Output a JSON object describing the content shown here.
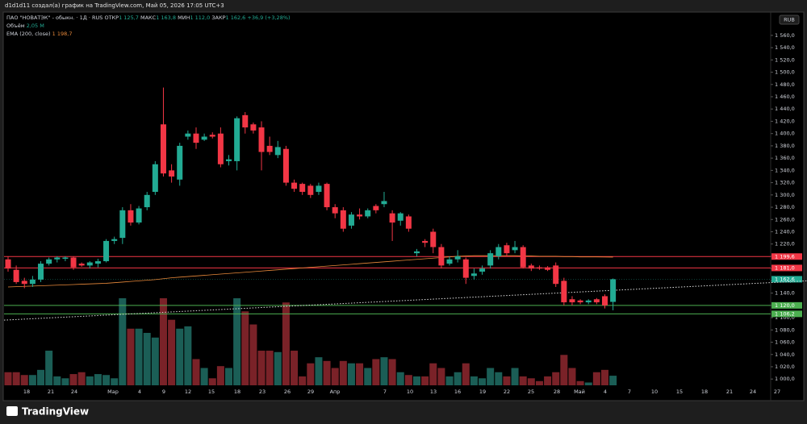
{
  "header": {
    "author": "d1d1d11 создал(а) график на TradingView.com, Май 05, 2026 17:05 UTC+3"
  },
  "legend": {
    "symbol": "ПАО \"НОВАТЭК\" - обыкн. · 1Д · RUS",
    "open_label": "ОТКР",
    "open": "1 125,7",
    "high_label": "МАКС",
    "high": "1 163,8",
    "low_label": "МИН",
    "low": "1 112,0",
    "close_label": "ЗАКР",
    "close": "1 162,6",
    "change": "+36,9 (+3,28%)",
    "volume_label": "Объём",
    "volume": "2,05 M",
    "ema_label": "EMA (200, close)",
    "ema": "1 198,7"
  },
  "currency": "RUB",
  "logo": "TradingView",
  "chart_data": {
    "type": "candlestick",
    "up_color": "#22ab94",
    "down_color": "#f23645",
    "up_volume_color": "#1b5e56",
    "down_volume_color": "#7a2228",
    "ema_color": "#e8893a",
    "ylim": [
      974,
      1594
    ],
    "yticks": [
      {
        "value": 1000,
        "label": "1 000,0"
      },
      {
        "value": 1020,
        "label": "1 020,0"
      },
      {
        "value": 1040,
        "label": "1 040,0"
      },
      {
        "value": 1060,
        "label": "1 060,0"
      },
      {
        "value": 1080,
        "label": "1 080,0"
      },
      {
        "value": 1100,
        "label": "1 100,0"
      },
      {
        "value": 1120,
        "label": "1 120,0"
      },
      {
        "value": 1140,
        "label": "1 140,0"
      },
      {
        "value": 1160,
        "label": "1 160,0"
      },
      {
        "value": 1180,
        "label": "1 180,0"
      },
      {
        "value": 1200,
        "label": "1 200,0"
      },
      {
        "value": 1220,
        "label": "1 220,0"
      },
      {
        "value": 1240,
        "label": "1 240,0"
      },
      {
        "value": 1260,
        "label": "1 260,0"
      },
      {
        "value": 1280,
        "label": "1 280,0"
      },
      {
        "value": 1300,
        "label": "1 300,0"
      },
      {
        "value": 1320,
        "label": "1 320,0"
      },
      {
        "value": 1340,
        "label": "1 340,0"
      },
      {
        "value": 1360,
        "label": "1 360,0"
      },
      {
        "value": 1380,
        "label": "1 380,0"
      },
      {
        "value": 1400,
        "label": "1 400,0"
      },
      {
        "value": 1420,
        "label": "1 420,0"
      },
      {
        "value": 1440,
        "label": "1 440,0"
      },
      {
        "value": 1460,
        "label": "1 460,0"
      },
      {
        "value": 1480,
        "label": "1 480,0"
      },
      {
        "value": 1500,
        "label": "1 500,0"
      },
      {
        "value": 1520,
        "label": "1 520,0"
      },
      {
        "value": 1540,
        "label": "1 540,0"
      },
      {
        "value": 1560,
        "label": "1 560,0"
      }
    ],
    "x_labels": [
      "18",
      "21",
      "24",
      "Мар",
      "4",
      "9",
      "12",
      "15",
      "18",
      "23",
      "26",
      "29",
      "Апр",
      "7",
      "10",
      "13",
      "16",
      "19",
      "22",
      "25",
      "28",
      "Май",
      "4",
      "7",
      "10",
      "15",
      "18",
      "21",
      "24",
      "27"
    ],
    "open": [
      1195,
      1178,
      1160,
      1155,
      1162,
      1188,
      1195,
      1196,
      1198,
      1188,
      1185,
      1188,
      1192,
      1225,
      1230,
      1275,
      1255,
      1280,
      1305,
      1415,
      1340,
      1325,
      1395,
      1400,
      1390,
      1398,
      1400,
      1355,
      1355,
      1430,
      1415,
      1410,
      1380,
      1365,
      1375,
      1320,
      1318,
      1315,
      1305,
      1318,
      1280,
      1275,
      1250,
      1268,
      1265,
      1282,
      1285,
      1270,
      1258,
      1265,
      1205,
      1225,
      1240,
      1215,
      1188,
      1195,
      1195,
      1168,
      1175,
      1185,
      1200,
      1218,
      1210,
      1215,
      1185,
      1182,
      1182,
      1185,
      1160,
      1130,
      1128,
      1125,
      1130,
      1135,
      1125.7
    ],
    "high": [
      1200,
      1185,
      1165,
      1168,
      1192,
      1198,
      1200,
      1200,
      1200,
      1190,
      1192,
      1196,
      1228,
      1232,
      1280,
      1285,
      1282,
      1305,
      1355,
      1475,
      1350,
      1385,
      1405,
      1410,
      1400,
      1402,
      1410,
      1365,
      1428,
      1435,
      1418,
      1420,
      1395,
      1388,
      1380,
      1325,
      1320,
      1318,
      1320,
      1320,
      1285,
      1280,
      1272,
      1278,
      1278,
      1285,
      1305,
      1275,
      1272,
      1268,
      1212,
      1228,
      1245,
      1220,
      1200,
      1210,
      1198,
      1180,
      1185,
      1210,
      1220,
      1222,
      1225,
      1218,
      1188,
      1185,
      1184,
      1190,
      1165,
      1135,
      1130,
      1130,
      1132,
      1138,
      1163.8
    ],
    "low": [
      1175,
      1155,
      1148,
      1150,
      1158,
      1185,
      1190,
      1192,
      1178,
      1183,
      1180,
      1182,
      1190,
      1220,
      1220,
      1250,
      1252,
      1275,
      1300,
      1330,
      1320,
      1315,
      1390,
      1375,
      1388,
      1392,
      1345,
      1348,
      1340,
      1400,
      1400,
      1340,
      1365,
      1360,
      1315,
      1305,
      1300,
      1295,
      1300,
      1275,
      1262,
      1240,
      1245,
      1260,
      1262,
      1270,
      1280,
      1225,
      1250,
      1240,
      1200,
      1215,
      1205,
      1180,
      1185,
      1190,
      1155,
      1162,
      1170,
      1180,
      1195,
      1200,
      1205,
      1180,
      1176,
      1178,
      1176,
      1150,
      1120,
      1120,
      1122,
      1122,
      1122,
      1115,
      1112
    ],
    "close": [
      1180,
      1158,
      1155,
      1162,
      1188,
      1195,
      1198,
      1198,
      1182,
      1185,
      1190,
      1192,
      1225,
      1228,
      1275,
      1255,
      1278,
      1300,
      1350,
      1335,
      1330,
      1380,
      1400,
      1385,
      1395,
      1395,
      1350,
      1358,
      1425,
      1410,
      1405,
      1370,
      1370,
      1378,
      1320,
      1310,
      1305,
      1300,
      1315,
      1280,
      1270,
      1245,
      1268,
      1265,
      1275,
      1275,
      1290,
      1255,
      1270,
      1245,
      1208,
      1222,
      1215,
      1185,
      1195,
      1200,
      1165,
      1172,
      1180,
      1205,
      1215,
      1205,
      1215,
      1182,
      1180,
      1180,
      1178,
      1155,
      1125,
      1125,
      1125,
      1128,
      1125,
      1120,
      1162.6
    ],
    "volume": [
      2.8,
      2.8,
      2.2,
      2.2,
      3.3,
      7.4,
      1.9,
      1.5,
      2.4,
      2.8,
      1.9,
      2.4,
      2.2,
      1.5,
      18.6,
      12.1,
      12.1,
      11.2,
      10.2,
      18.6,
      14.0,
      12.1,
      12.6,
      5.6,
      3.7,
      1.5,
      4.1,
      3.7,
      18.6,
      15.8,
      13.0,
      7.4,
      7.4,
      7.1,
      17.7,
      7.4,
      1.9,
      4.7,
      6.0,
      5.2,
      3.7,
      5.2,
      4.7,
      4.7,
      3.7,
      5.6,
      6.0,
      5.6,
      2.8,
      2.2,
      1.9,
      1.9,
      4.7,
      3.7,
      1.9,
      2.8,
      4.7,
      1.9,
      1.5,
      3.7,
      2.8,
      1.9,
      3.7,
      1.9,
      1.5,
      0.9,
      1.9,
      2.8,
      6.5,
      3.7,
      0.9,
      0.6,
      2.8,
      3.3,
      2.05
    ],
    "ema": [
      1150,
      1150.5,
      1151,
      1151.5,
      1152,
      1152.5,
      1153,
      1153.5,
      1154,
      1154.5,
      1155,
      1155.5,
      1156,
      1157,
      1158,
      1159,
      1160,
      1161,
      1162,
      1163.5,
      1165,
      1166,
      1167,
      1168,
      1169,
      1170,
      1171,
      1172,
      1173,
      1174,
      1175,
      1176,
      1177,
      1178,
      1179,
      1180,
      1181,
      1182,
      1183,
      1184,
      1185,
      1186,
      1187,
      1188,
      1189,
      1190,
      1191,
      1192,
      1193,
      1194,
      1195,
      1196,
      1197,
      1198,
      1199,
      1200,
      1200.5,
      1201,
      1201,
      1201,
      1201,
      1201,
      1201,
      1200.5,
      1200.5,
      1200,
      1200,
      1200,
      1199.5,
      1199.5,
      1199,
      1199,
      1199,
      1198.8,
      1198.7
    ],
    "trendline": [
      1096,
      1160
    ],
    "price_lines": [
      {
        "value": 1199.6,
        "label": "1 199,6",
        "color": "#f23645",
        "style": "solid"
      },
      {
        "value": 1181.0,
        "label": "1 181,0",
        "color": "#f23645",
        "style": "solid"
      },
      {
        "value": 1162.6,
        "label": "1 162,6",
        "color": "#22ab94",
        "style": "dotted"
      },
      {
        "value": 1120.0,
        "label": "1 120,0",
        "color": "#4caf50",
        "style": "solid"
      },
      {
        "value": 1106.2,
        "label": "1 106,2",
        "color": "#4caf50",
        "style": "solid"
      }
    ]
  }
}
